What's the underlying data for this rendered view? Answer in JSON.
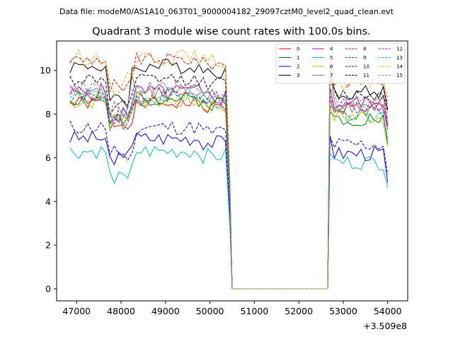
{
  "header_text": "Data file: modeM0/AS1A10_063T01_9000004182_29097cztM0_level2_quad_clean.evt",
  "chart_data": {
    "type": "line",
    "title": "Quadrant 3 module wise count rates with 100.0s bins.",
    "xlabel": "",
    "ylabel": "",
    "x_offset_label": "+3.509e8",
    "xlim": [
      46550,
      54450
    ],
    "ylim": [
      -0.55,
      11.35
    ],
    "x_ticks": [
      47000,
      48000,
      49000,
      50000,
      51000,
      52000,
      53000,
      54000
    ],
    "x_tick_labels": [
      "47000",
      "48000",
      "49000",
      "50000",
      "51000",
      "52000",
      "53000",
      "54000"
    ],
    "y_ticks": [
      0,
      2,
      4,
      6,
      8,
      10
    ],
    "y_tick_labels": [
      "0",
      "2",
      "4",
      "6",
      "8",
      "10"
    ],
    "segments": [
      {
        "start": 46850,
        "end": 50350
      },
      {
        "start": 52700,
        "end": 54050
      }
    ],
    "gap_value": 0,
    "legend_position": "top-right",
    "series": [
      {
        "name": "0",
        "color": "#ff0000",
        "dash": false,
        "base1": 8.5,
        "base2": 8.3,
        "amp": 0.3,
        "dip": 1.0,
        "spike": 0.4,
        "seed": 1
      },
      {
        "name": "1",
        "color": "#008000",
        "dash": false,
        "base1": 8.7,
        "base2": 7.8,
        "amp": 0.35,
        "dip": 1.0,
        "spike": 0.3,
        "seed": 2
      },
      {
        "name": "2",
        "color": "#0000ff",
        "dash": false,
        "base1": 6.9,
        "base2": 6.2,
        "amp": 0.35,
        "dip": 1.1,
        "spike": 0.8,
        "seed": 3
      },
      {
        "name": "3",
        "color": "#000000",
        "dash": false,
        "base1": 10.2,
        "base2": 9.0,
        "amp": 0.35,
        "dip": 1.5,
        "spike": 1.2,
        "seed": 4
      },
      {
        "name": "4",
        "color": "#bf00bf",
        "dash": false,
        "base1": 9.0,
        "base2": 8.5,
        "amp": 0.4,
        "dip": 1.0,
        "spike": 0.7,
        "seed": 5
      },
      {
        "name": "5",
        "color": "#00bfbf",
        "dash": false,
        "base1": 6.3,
        "base2": 5.8,
        "amp": 0.35,
        "dip": 1.0,
        "spike": 0.4,
        "seed": 6
      },
      {
        "name": "6",
        "color": "#bfbf00",
        "dash": false,
        "base1": 8.6,
        "base2": 7.9,
        "amp": 0.4,
        "dip": 1.0,
        "spike": 0.5,
        "seed": 7
      },
      {
        "name": "7",
        "color": "#808080",
        "dash": false,
        "base1": 9.0,
        "base2": 8.4,
        "amp": 0.4,
        "dip": 1.2,
        "spike": 1.6,
        "seed": 8
      },
      {
        "name": "8",
        "color": "#ff0000",
        "dash": true,
        "base1": 10.5,
        "base2": 9.5,
        "amp": 0.3,
        "dip": 1.3,
        "spike": 0.6,
        "seed": 9
      },
      {
        "name": "9",
        "color": "#008000",
        "dash": true,
        "base1": 8.8,
        "base2": 8.0,
        "amp": 0.35,
        "dip": 1.1,
        "spike": 0.4,
        "seed": 10
      },
      {
        "name": "10",
        "color": "#0000ff",
        "dash": true,
        "base1": 7.4,
        "base2": 6.6,
        "amp": 0.35,
        "dip": 1.2,
        "spike": 0.4,
        "seed": 11
      },
      {
        "name": "11",
        "color": "#000000",
        "dash": true,
        "base1": 9.6,
        "base2": 8.9,
        "amp": 0.3,
        "dip": 1.3,
        "spike": 0.8,
        "seed": 12
      },
      {
        "name": "12",
        "color": "#bf00bf",
        "dash": true,
        "base1": 8.9,
        "base2": 8.4,
        "amp": 0.35,
        "dip": 1.0,
        "spike": 0.5,
        "seed": 13
      },
      {
        "name": "13",
        "color": "#00bfbf",
        "dash": true,
        "base1": 8.8,
        "base2": 8.0,
        "amp": 0.35,
        "dip": 1.0,
        "spike": 0.4,
        "seed": 14
      },
      {
        "name": "14",
        "color": "#bfbf00",
        "dash": true,
        "base1": 10.6,
        "base2": 9.4,
        "amp": 0.35,
        "dip": 1.3,
        "spike": 0.7,
        "seed": 15
      },
      {
        "name": "15",
        "color": "#808080",
        "dash": true,
        "base1": 9.2,
        "base2": 8.6,
        "amp": 0.35,
        "dip": 1.1,
        "spike": 0.6,
        "seed": 16
      }
    ]
  }
}
